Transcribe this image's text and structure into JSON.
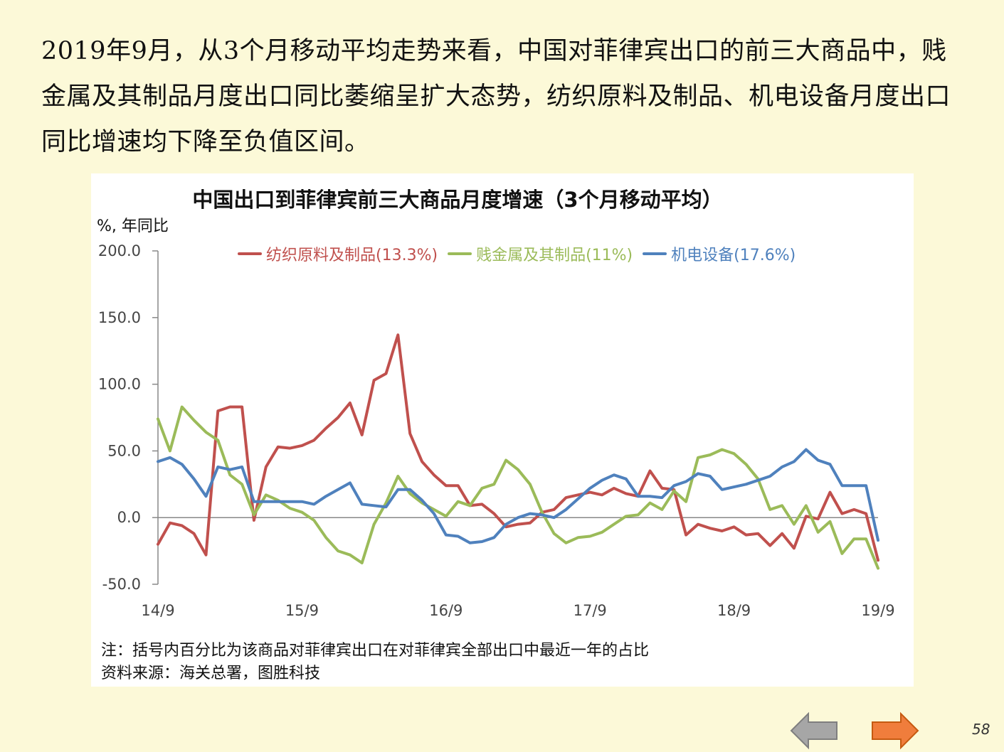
{
  "intro_text": "2019年9月，从3个月移动平均走势来看，中国对菲律宾出口的前三大商品中，贱金属及其制品月度出口同比萎缩呈扩大态势，纺织原料及制品、机电设备月度出口同比增速均下降至负值区间。",
  "chart_data": {
    "type": "line",
    "title": "中国出口到菲律宾前三大商品月度增速（3个月移动平均）",
    "ylabel": "%, 年同比",
    "xlabel": "",
    "ylim": [
      -50,
      200
    ],
    "y_ticks": [
      "200.0",
      "150.0",
      "100.0",
      "50.0",
      "0.0",
      "-50.0"
    ],
    "y_tick_values": [
      200,
      150,
      100,
      50,
      0,
      -50
    ],
    "x_ticks": [
      "14/9",
      "15/9",
      "16/9",
      "17/9",
      "18/9",
      "19/9"
    ],
    "x_tick_index": [
      0,
      12,
      24,
      36,
      48,
      60
    ],
    "grid": false,
    "legend_position": "top",
    "series": [
      {
        "name": "纺织原料及制品(13.3%)",
        "color": "#c0504d",
        "values": [
          -20,
          -4,
          -6,
          -12,
          -28,
          80,
          83,
          83,
          -2,
          38,
          53,
          52,
          54,
          58,
          67,
          75,
          86,
          62,
          103,
          108,
          137,
          63,
          42,
          32,
          24,
          24,
          9,
          10,
          3,
          -7,
          -5,
          -4,
          4,
          6,
          15,
          17,
          19,
          17,
          22,
          18,
          16,
          35,
          22,
          21,
          -13,
          -5,
          -8,
          -10,
          -7,
          -13,
          -12,
          -21,
          -12,
          -23,
          1,
          -1,
          19,
          3,
          6,
          3,
          -32
        ]
      },
      {
        "name": "贱金属及其制品(11%)",
        "color": "#9bbb59",
        "values": [
          74,
          50,
          83,
          73,
          64,
          58,
          32,
          25,
          2,
          17,
          13,
          7,
          4,
          -2,
          -15,
          -25,
          -28,
          -34,
          -5,
          11,
          31,
          18,
          11,
          6,
          1,
          12,
          9,
          22,
          25,
          43,
          36,
          25,
          4,
          -12,
          -19,
          -15,
          -14,
          -11,
          -5,
          1,
          2,
          11,
          6,
          20,
          12,
          45,
          47,
          51,
          48,
          40,
          29,
          6,
          9,
          -5,
          9,
          -11,
          -3,
          -27,
          -16,
          -16,
          -38
        ]
      },
      {
        "name": "机电设备(17.6%)",
        "color": "#4f81bd",
        "values": [
          42,
          45,
          40,
          29,
          16,
          38,
          36,
          38,
          12,
          12,
          12,
          12,
          12,
          10,
          16,
          21,
          26,
          10,
          9,
          8,
          21,
          21,
          13,
          3,
          -13,
          -14,
          -19,
          -18,
          -15,
          -5,
          0,
          3,
          2,
          0,
          6,
          14,
          22,
          28,
          32,
          29,
          16,
          16,
          15,
          24,
          27,
          33,
          31,
          21,
          23,
          25,
          28,
          31,
          38,
          42,
          51,
          43,
          40,
          24,
          24,
          24,
          -17
        ]
      }
    ]
  },
  "footnote": "注：括号内百分比为该商品对菲律宾出口在对菲律宾全部出口中最近一年的占比",
  "source": "资料来源：海关总署，图胜科技",
  "nav": {
    "back_color": "#a6a6a6",
    "forward_color": "#f07d3c"
  },
  "page_number": "58"
}
